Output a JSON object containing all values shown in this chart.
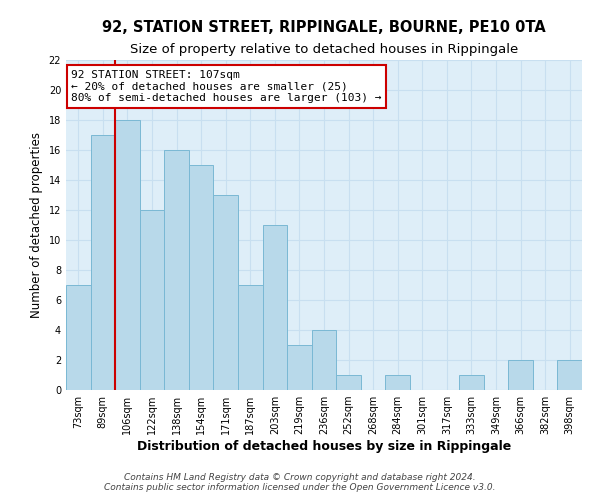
{
  "title": "92, STATION STREET, RIPPINGALE, BOURNE, PE10 0TA",
  "subtitle": "Size of property relative to detached houses in Rippingale",
  "xlabel": "Distribution of detached houses by size in Rippingale",
  "ylabel": "Number of detached properties",
  "bin_labels": [
    "73sqm",
    "89sqm",
    "106sqm",
    "122sqm",
    "138sqm",
    "154sqm",
    "171sqm",
    "187sqm",
    "203sqm",
    "219sqm",
    "236sqm",
    "252sqm",
    "268sqm",
    "284sqm",
    "301sqm",
    "317sqm",
    "333sqm",
    "349sqm",
    "366sqm",
    "382sqm",
    "398sqm"
  ],
  "bar_heights": [
    7,
    17,
    18,
    12,
    16,
    15,
    13,
    7,
    11,
    3,
    4,
    1,
    0,
    1,
    0,
    0,
    1,
    0,
    2,
    0,
    2
  ],
  "bar_color": "#b8d9ea",
  "bar_edge_color": "#7ab8d4",
  "highlight_bar_index": 2,
  "highlight_line_color": "#cc0000",
  "annotation_title": "92 STATION STREET: 107sqm",
  "annotation_line1": "← 20% of detached houses are smaller (25)",
  "annotation_line2": "80% of semi-detached houses are larger (103) →",
  "annotation_box_color": "#ffffff",
  "annotation_box_edge_color": "#cc0000",
  "ylim": [
    0,
    22
  ],
  "yticks": [
    0,
    2,
    4,
    6,
    8,
    10,
    12,
    14,
    16,
    18,
    20,
    22
  ],
  "grid_color": "#c8dff0",
  "background_color": "#deeef8",
  "footer_line1": "Contains HM Land Registry data © Crown copyright and database right 2024.",
  "footer_line2": "Contains public sector information licensed under the Open Government Licence v3.0.",
  "title_fontsize": 10.5,
  "subtitle_fontsize": 9.5,
  "xlabel_fontsize": 9,
  "ylabel_fontsize": 8.5,
  "tick_fontsize": 7,
  "annotation_fontsize": 8,
  "footer_fontsize": 6.5
}
